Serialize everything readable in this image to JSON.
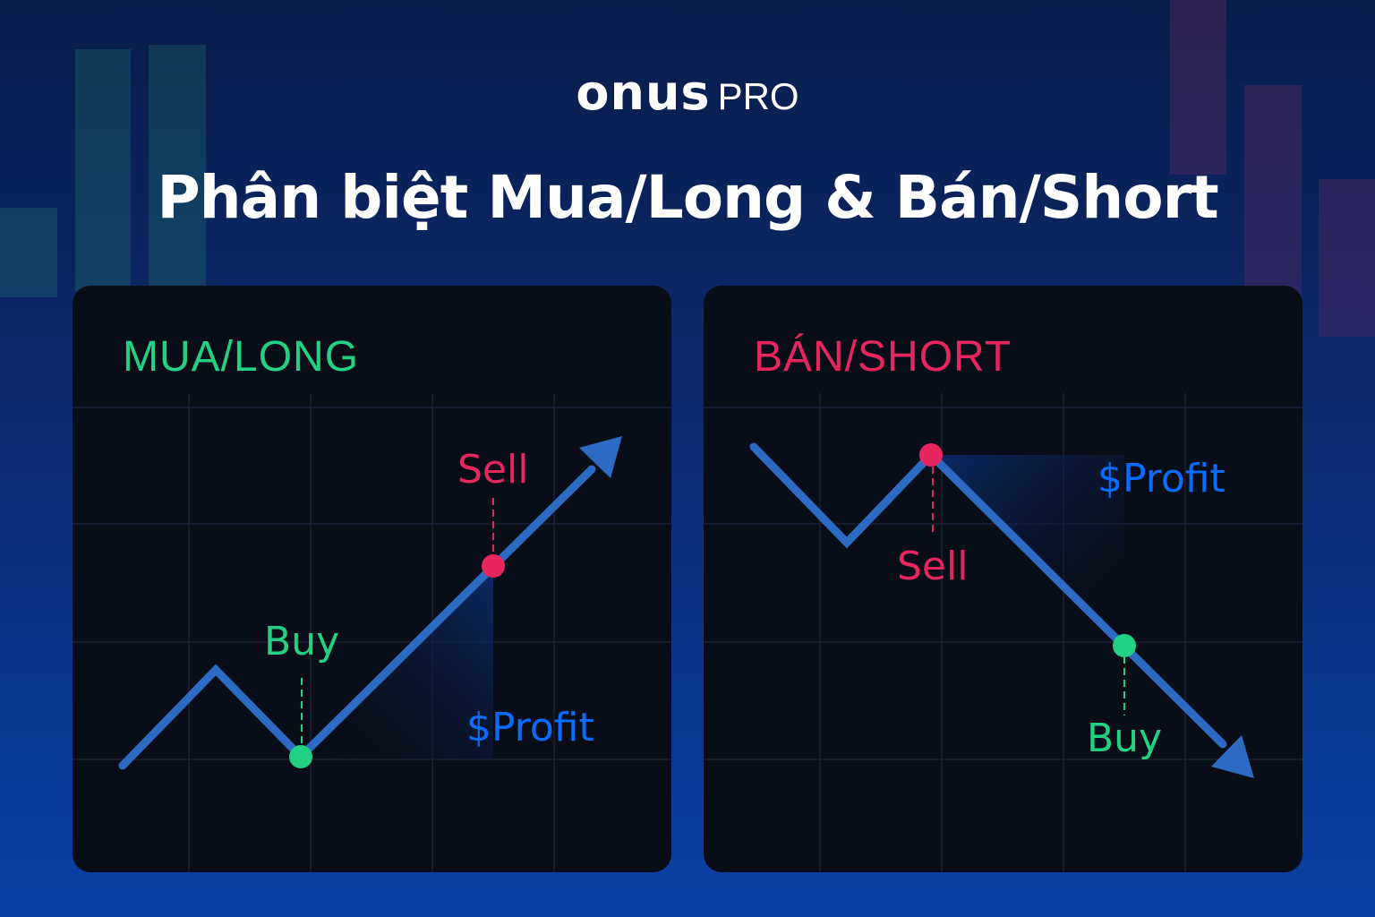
{
  "brand": {
    "name": "onus",
    "suffix": "PRO"
  },
  "title": "Phân biệt Mua/Long & Bán/Short",
  "colors": {
    "green": "#22d184",
    "red": "#e5265f",
    "blue": "#0a6cff",
    "line": "#2d6ac4"
  },
  "panels": [
    {
      "title": "MUA/LONG",
      "buy_label": "Buy",
      "sell_label": "Sell",
      "profit_label": "$Profit",
      "trend": "up"
    },
    {
      "title": "BÁN/SHORT",
      "buy_label": "Buy",
      "sell_label": "Sell",
      "profit_label": "$Profit",
      "trend": "down"
    }
  ]
}
